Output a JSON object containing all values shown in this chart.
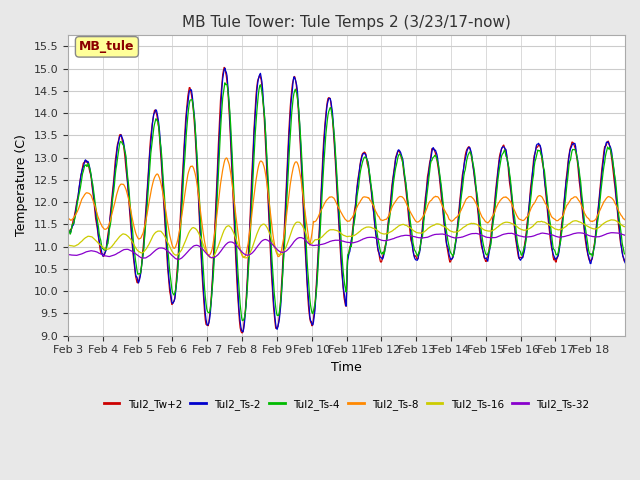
{
  "title": "MB Tule Tower: Tule Temps 2 (3/23/17-now)",
  "xlabel": "Time",
  "ylabel": "Temperature (C)",
  "ylim": [
    9.0,
    15.75
  ],
  "yticks": [
    9.0,
    9.5,
    10.0,
    10.5,
    11.0,
    11.5,
    12.0,
    12.5,
    13.0,
    13.5,
    14.0,
    14.5,
    15.0,
    15.5
  ],
  "xtick_positions": [
    0,
    1,
    2,
    3,
    4,
    5,
    6,
    7,
    8,
    9,
    10,
    11,
    12,
    13,
    14,
    15
  ],
  "xtick_labels": [
    "Feb 3",
    "Feb 4",
    "Feb 5",
    "Feb 6",
    "Feb 7",
    "Feb 8",
    "Feb 9",
    "Feb 10",
    "Feb 11",
    "Feb 12",
    "Feb 13",
    "Feb 14",
    "Feb 15",
    "Feb 16",
    "Feb 17",
    "Feb 18"
  ],
  "legend_label": "MB_tule",
  "legend_box_color": "#ffff99",
  "legend_text_color": "#8b0000",
  "line_colors": [
    "#cc0000",
    "#0000cc",
    "#00bb00",
    "#ff8800",
    "#cccc00",
    "#8800cc"
  ],
  "line_labels": [
    "Tul2_Tw+2",
    "Tul2_Ts-2",
    "Tul2_Ts-4",
    "Tul2_Ts-8",
    "Tul2_Ts-16",
    "Tul2_Ts-32"
  ],
  "bg_color": "#e8e8e8",
  "plot_bg_color": "#ffffff",
  "grid_color": "#cccccc",
  "n_days": 16,
  "points_per_day": 48
}
